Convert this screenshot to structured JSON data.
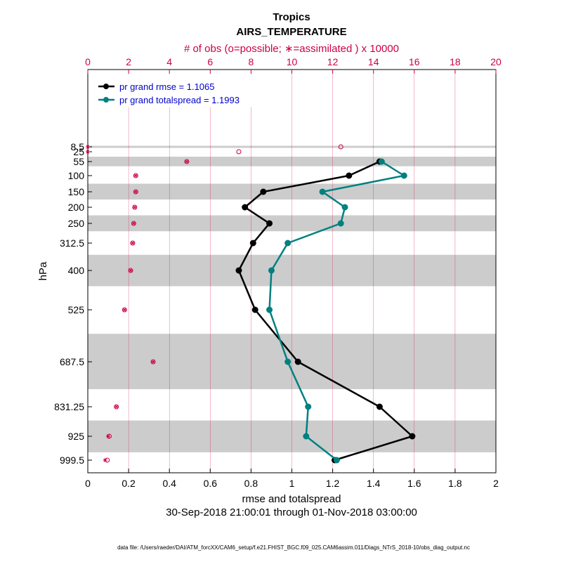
{
  "chart_data": {
    "type": "line",
    "title": "Tropics",
    "subtitle": "AIRS_TEMPERATURE",
    "top_axis_label": "# of obs (o=possible; ∗=assimilated ) x 10000",
    "xlabel": "rmse and totalspread",
    "ylabel": "hPa",
    "date_range": "30-Sep-2018 21:00:01 through 01-Nov-2018 03:00:00",
    "footnote": "data file: /Users/raeder/DAI/ATM_forcXX/CAM6_setup/f.e21.FHIST_BGC.f09_025.CAM6assim.011/Diags_NTrS_2018-10/obs_diag_output.nc",
    "xlim": [
      0,
      2
    ],
    "xticks": [
      "0",
      "0.2",
      "0.4",
      "0.6",
      "0.8",
      "1",
      "1.2",
      "1.4",
      "1.6",
      "1.8",
      "2"
    ],
    "top_xlim": [
      0,
      20
    ],
    "top_xticks": [
      "0",
      "2",
      "4",
      "6",
      "8",
      "10",
      "12",
      "14",
      "16",
      "18",
      "20"
    ],
    "levels": [
      8.5,
      25,
      55,
      100,
      150,
      200,
      250,
      312.5,
      400,
      525,
      687.5,
      831.25,
      925,
      999.5
    ],
    "level_labels": [
      "8.5",
      "25",
      "55",
      "100",
      "150",
      "200",
      "250",
      "312.5",
      "400",
      "525",
      "687.5",
      "831.25",
      "925",
      "999.5"
    ],
    "shaded_layers_hPa": [
      [
        5,
        12
      ],
      [
        40,
        70
      ],
      [
        125,
        175
      ],
      [
        225,
        275
      ],
      [
        350,
        450
      ],
      [
        600,
        775
      ],
      [
        875,
        975
      ]
    ],
    "series": [
      {
        "name": "pr grand rmse",
        "legend": "pr grand rmse = 1.1065",
        "color": "#000000",
        "levels": [
          55,
          100,
          150,
          200,
          250,
          312.5,
          400,
          525,
          687.5,
          831.25,
          925,
          999.5
        ],
        "values": [
          1.43,
          1.28,
          0.86,
          0.77,
          0.89,
          0.81,
          0.74,
          0.82,
          1.03,
          1.43,
          1.59,
          1.21
        ]
      },
      {
        "name": "pr grand totalspread",
        "legend": "pr grand totalspread = 1.1993",
        "color": "#008080",
        "levels": [
          55,
          100,
          150,
          200,
          250,
          312.5,
          400,
          525,
          687.5,
          831.25,
          925,
          999.5
        ],
        "values": [
          1.44,
          1.55,
          1.15,
          1.26,
          1.24,
          0.98,
          0.9,
          0.89,
          0.98,
          1.08,
          1.07,
          1.22
        ]
      }
    ],
    "obs_possible": {
      "levels": [
        8.5,
        25,
        55,
        100,
        150,
        200,
        250,
        312.5,
        400,
        525,
        687.5,
        831.25,
        925,
        999.5
      ],
      "values": [
        12.4,
        7.4,
        4.85,
        2.35,
        2.35,
        2.3,
        2.25,
        2.2,
        2.1,
        1.8,
        3.2,
        1.4,
        1.05,
        0.95
      ]
    },
    "obs_assimilated": {
      "levels": [
        8.5,
        25,
        55,
        100,
        150,
        200,
        250,
        312.5,
        400,
        525,
        687.5,
        831.25,
        925,
        999.5
      ],
      "values": [
        0.0,
        0.0,
        4.85,
        2.35,
        2.35,
        2.3,
        2.25,
        2.2,
        2.1,
        1.8,
        3.2,
        1.4,
        1.0,
        0.85
      ]
    }
  }
}
